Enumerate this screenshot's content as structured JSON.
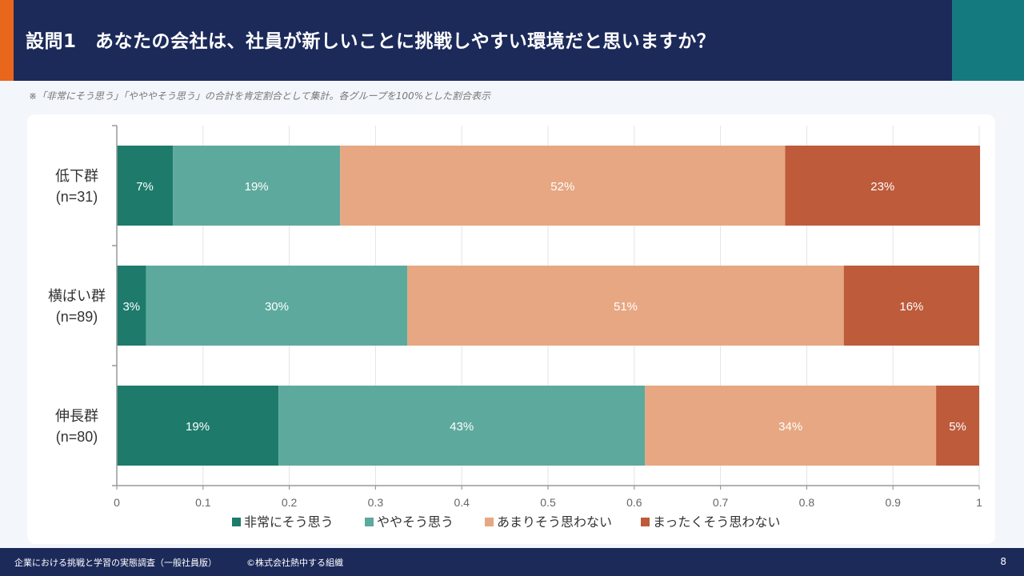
{
  "header": {
    "title": "設問1　あなたの会社は、社員が新しいことに挑戦しやすい環境だと思いますか？"
  },
  "note": "※「非常にそう思う」「やややそう思う」の合計を肯定割合として集計。各グループを100%とした割合表示",
  "footer": {
    "source": "企業における挑戦と学習の実態調査（一般社員版）",
    "copyright": "©株式会社熱中する組織",
    "page_number": "8"
  },
  "colors": {
    "header_bg": "#1c2a5a",
    "accent_orange": "#e8671c",
    "accent_teal": "#147a7f"
  },
  "chart_data": {
    "type": "bar",
    "orientation": "horizontal",
    "stacked": true,
    "normalized": true,
    "categories": [
      {
        "name": "低下群",
        "n": "(n=31)"
      },
      {
        "name": "横ばい群",
        "n": "(n=89)"
      },
      {
        "name": "伸長群",
        "n": "(n=80)"
      }
    ],
    "series": [
      {
        "name": "非常にそう思う",
        "color": "#1e7b6c",
        "values": [
          0.065,
          0.034,
          0.1875
        ],
        "labels": [
          "7%",
          "3%",
          "19%"
        ]
      },
      {
        "name": "ややそう思う",
        "color": "#5da99d",
        "values": [
          0.194,
          0.303,
          0.425
        ],
        "labels": [
          "19%",
          "30%",
          "43%"
        ]
      },
      {
        "name": "あまりそう思わない",
        "color": "#e6a782",
        "values": [
          0.516,
          0.506,
          0.3375
        ],
        "labels": [
          "52%",
          "51%",
          "34%"
        ]
      },
      {
        "name": "まったくそう思わない",
        "color": "#bd5b3b",
        "values": [
          0.226,
          0.157,
          0.05
        ],
        "labels": [
          "23%",
          "16%",
          "5%"
        ]
      }
    ],
    "xlim": [
      0,
      1
    ],
    "xticks": [
      "0",
      "0.1",
      "0.2",
      "0.3",
      "0.4",
      "0.5",
      "0.6",
      "0.7",
      "0.8",
      "0.9",
      "1"
    ],
    "grid": true,
    "legend_position": "bottom",
    "title": "",
    "xlabel": "",
    "ylabel": ""
  }
}
